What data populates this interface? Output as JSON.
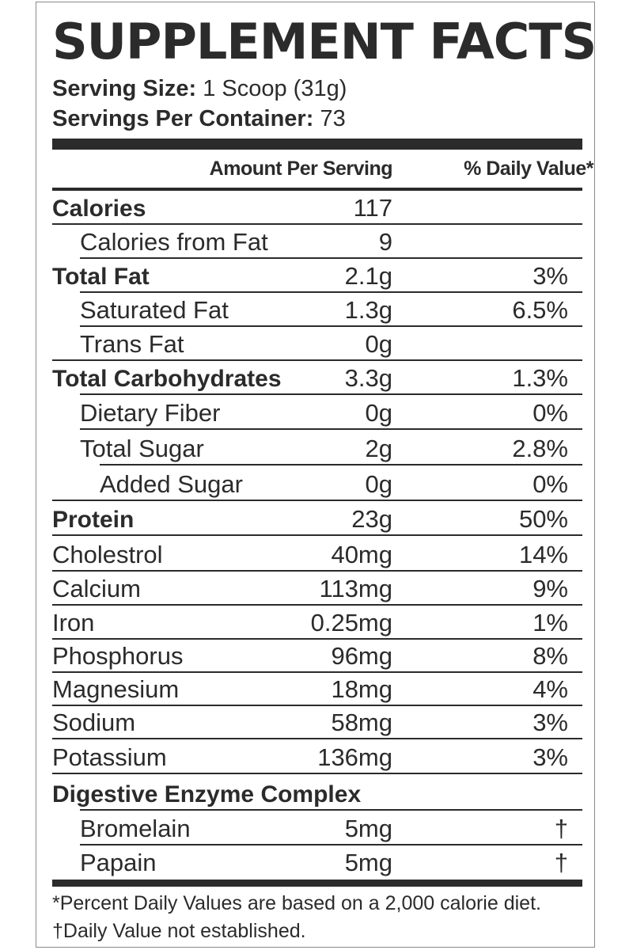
{
  "title": "SUPPLEMENT FACTS",
  "serving_size": {
    "label": "Serving Size:",
    "value": "1 Scoop (31g)"
  },
  "servings_per_container": {
    "label": "Servings Per Container:",
    "value": "73"
  },
  "header": {
    "amount": "Amount Per Serving",
    "daily_value": "% Daily Value*"
  },
  "rows": [
    {
      "name": "Calories",
      "amount": "117",
      "dv": ""
    },
    {
      "name": "Calories from Fat",
      "amount": "9",
      "dv": ""
    },
    {
      "name": "Total Fat",
      "amount": "2.1g",
      "dv": "3%"
    },
    {
      "name": "Saturated Fat",
      "amount": "1.3g",
      "dv": "6.5%"
    },
    {
      "name": "Trans Fat",
      "amount": "0g",
      "dv": ""
    },
    {
      "name": "Total Carbohydrates",
      "amount": "3.3g",
      "dv": "1.3%"
    },
    {
      "name": "Dietary Fiber",
      "amount": "0g",
      "dv": "0%"
    },
    {
      "name": "Total Sugar",
      "amount": "2g",
      "dv": "2.8%"
    },
    {
      "name": "Added Sugar",
      "amount": "0g",
      "dv": "0%"
    },
    {
      "name": "Protein",
      "amount": "23g",
      "dv": "50%"
    },
    {
      "name": "Cholestrol",
      "amount": "40mg",
      "dv": "14%"
    },
    {
      "name": "Calcium",
      "amount": "113mg",
      "dv": "9%"
    },
    {
      "name": "Iron",
      "amount": "0.25mg",
      "dv": "1%"
    },
    {
      "name": "Phosphorus",
      "amount": "96mg",
      "dv": "8%"
    },
    {
      "name": "Magnesium",
      "amount": "18mg",
      "dv": "4%"
    },
    {
      "name": "Sodium",
      "amount": "58mg",
      "dv": "3%"
    },
    {
      "name": "Potassium",
      "amount": "136mg",
      "dv": "3%"
    },
    {
      "name": "Digestive Enzyme Complex",
      "amount": "",
      "dv": ""
    },
    {
      "name": "Bromelain",
      "amount": "5mg",
      "dv": "†"
    },
    {
      "name": "Papain",
      "amount": "5mg",
      "dv": "†"
    }
  ],
  "footnotes": [
    "*Percent Daily Values are based on a 2,000 calorie diet.",
    "†Daily Value not established."
  ]
}
